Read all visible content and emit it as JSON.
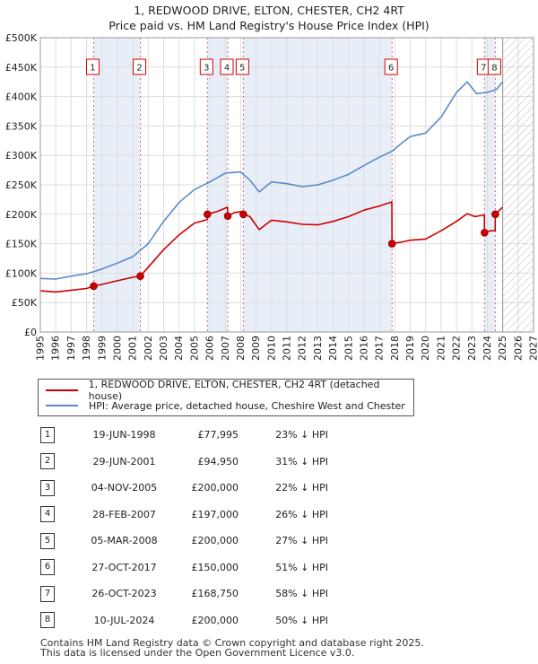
{
  "title_line1": "1, REDWOOD DRIVE, ELTON, CHESTER, CH2 4RT",
  "title_line2": "Price paid vs. HM Land Registry's House Price Index (HPI)",
  "chart_data": {
    "type": "line",
    "ylim": [
      0,
      500000
    ],
    "xlim": [
      1995,
      2027
    ],
    "y_ticks": [
      {
        "value": 0,
        "label": "£0"
      },
      {
        "value": 50000,
        "label": "£50K"
      },
      {
        "value": 100000,
        "label": "£100K"
      },
      {
        "value": 150000,
        "label": "£150K"
      },
      {
        "value": 200000,
        "label": "£200K"
      },
      {
        "value": 250000,
        "label": "£250K"
      },
      {
        "value": 300000,
        "label": "£300K"
      },
      {
        "value": 350000,
        "label": "£350K"
      },
      {
        "value": 400000,
        "label": "£400K"
      },
      {
        "value": 450000,
        "label": "£450K"
      },
      {
        "value": 500000,
        "label": "£500K"
      }
    ],
    "x_ticks": [
      "1995",
      "1996",
      "1997",
      "1998",
      "1999",
      "2000",
      "2001",
      "2002",
      "2003",
      "2004",
      "2005",
      "2006",
      "2007",
      "2008",
      "2009",
      "2010",
      "2011",
      "2012",
      "2013",
      "2014",
      "2015",
      "2016",
      "2017",
      "2018",
      "2019",
      "2020",
      "2021",
      "2022",
      "2023",
      "2024",
      "2025",
      "2026",
      "2027"
    ],
    "future_hatch_from": 2025.0,
    "shaded_bands": [
      [
        1998.46,
        2001.49
      ],
      [
        2005.84,
        2007.16
      ],
      [
        2008.17,
        2017.82
      ],
      [
        2023.82,
        2024.52
      ]
    ],
    "series": [
      {
        "name": "1, REDWOOD DRIVE, ELTON, CHESTER, CH2 4RT (detached house)",
        "color": "#cc0000",
        "points": [
          [
            1995.0,
            70000
          ],
          [
            1996.0,
            68000
          ],
          [
            1997.0,
            71000
          ],
          [
            1998.0,
            74000
          ],
          [
            1998.46,
            77995
          ],
          [
            1999.0,
            81000
          ],
          [
            2000.0,
            87000
          ],
          [
            2001.0,
            93000
          ],
          [
            2001.49,
            94950
          ],
          [
            2002.0,
            110000
          ],
          [
            2003.0,
            140000
          ],
          [
            2004.0,
            165000
          ],
          [
            2005.0,
            185000
          ],
          [
            2005.84,
            191000
          ],
          [
            2005.85,
            200000
          ],
          [
            2006.5,
            205000
          ],
          [
            2007.15,
            212000
          ],
          [
            2007.16,
            197000
          ],
          [
            2007.6,
            203000
          ],
          [
            2008.17,
            205000
          ],
          [
            2008.18,
            200000
          ],
          [
            2008.6,
            196000
          ],
          [
            2009.2,
            174000
          ],
          [
            2010.0,
            190000
          ],
          [
            2011.0,
            187000
          ],
          [
            2012.0,
            183000
          ],
          [
            2013.0,
            182000
          ],
          [
            2014.0,
            188000
          ],
          [
            2015.0,
            196000
          ],
          [
            2016.0,
            207000
          ],
          [
            2017.0,
            214000
          ],
          [
            2017.81,
            221000
          ],
          [
            2017.82,
            150000
          ],
          [
            2018.5,
            153000
          ],
          [
            2019.0,
            156000
          ],
          [
            2020.0,
            158000
          ],
          [
            2021.0,
            172000
          ],
          [
            2022.0,
            188000
          ],
          [
            2022.7,
            201000
          ],
          [
            2023.2,
            196000
          ],
          [
            2023.81,
            199000
          ],
          [
            2023.82,
            168750
          ],
          [
            2024.2,
            172000
          ],
          [
            2024.51,
            172000
          ],
          [
            2024.52,
            200000
          ],
          [
            2025.0,
            212000
          ]
        ]
      },
      {
        "name": "HPI: Average price, detached house, Cheshire West and Chester",
        "color": "#5b8ac8",
        "points": [
          [
            1995.0,
            91000
          ],
          [
            1996.0,
            90000
          ],
          [
            1997.0,
            95000
          ],
          [
            1998.0,
            99000
          ],
          [
            1999.0,
            107000
          ],
          [
            2000.0,
            117000
          ],
          [
            2001.0,
            128000
          ],
          [
            2002.0,
            150000
          ],
          [
            2003.0,
            188000
          ],
          [
            2004.0,
            220000
          ],
          [
            2005.0,
            242000
          ],
          [
            2006.0,
            255000
          ],
          [
            2007.0,
            270000
          ],
          [
            2008.0,
            272000
          ],
          [
            2008.6,
            258000
          ],
          [
            2009.2,
            238000
          ],
          [
            2010.0,
            255000
          ],
          [
            2011.0,
            252000
          ],
          [
            2012.0,
            247000
          ],
          [
            2013.0,
            250000
          ],
          [
            2014.0,
            258000
          ],
          [
            2015.0,
            268000
          ],
          [
            2016.0,
            283000
          ],
          [
            2017.0,
            297000
          ],
          [
            2017.82,
            307000
          ],
          [
            2018.5,
            322000
          ],
          [
            2019.0,
            332000
          ],
          [
            2020.0,
            338000
          ],
          [
            2021.0,
            365000
          ],
          [
            2022.0,
            407000
          ],
          [
            2022.7,
            425000
          ],
          [
            2023.3,
            405000
          ],
          [
            2024.0,
            407000
          ],
          [
            2024.6,
            412000
          ],
          [
            2025.0,
            425000
          ]
        ]
      }
    ],
    "sales": [
      {
        "label": "1",
        "x": 1998.46,
        "value": 77995
      },
      {
        "label": "2",
        "x": 2001.49,
        "value": 94950
      },
      {
        "label": "3",
        "x": 2005.84,
        "value": 200000
      },
      {
        "label": "4",
        "x": 2007.16,
        "value": 197000
      },
      {
        "label": "5",
        "x": 2008.17,
        "value": 200000
      },
      {
        "label": "6",
        "x": 2017.82,
        "value": 150000
      },
      {
        "label": "7",
        "x": 2023.82,
        "value": 168750
      },
      {
        "label": "8",
        "x": 2024.52,
        "value": 200000
      }
    ]
  },
  "legend": {
    "property_label": "1, REDWOOD DRIVE, ELTON, CHESTER, CH2 4RT (detached house)",
    "hpi_label": "HPI: Average price, detached house, Cheshire West and Chester",
    "property_color": "#cc0000",
    "hpi_color": "#5b8ac8"
  },
  "table": [
    {
      "num": "1",
      "date": "19-JUN-1998",
      "price": "£77,995",
      "hpi": "23% ↓ HPI"
    },
    {
      "num": "2",
      "date": "29-JUN-2001",
      "price": "£94,950",
      "hpi": "31% ↓ HPI"
    },
    {
      "num": "3",
      "date": "04-NOV-2005",
      "price": "£200,000",
      "hpi": "22% ↓ HPI"
    },
    {
      "num": "4",
      "date": "28-FEB-2007",
      "price": "£197,000",
      "hpi": "26% ↓ HPI"
    },
    {
      "num": "5",
      "date": "05-MAR-2008",
      "price": "£200,000",
      "hpi": "27% ↓ HPI"
    },
    {
      "num": "6",
      "date": "27-OCT-2017",
      "price": "£150,000",
      "hpi": "51% ↓ HPI"
    },
    {
      "num": "7",
      "date": "26-OCT-2023",
      "price": "£168,750",
      "hpi": "58% ↓ HPI"
    },
    {
      "num": "8",
      "date": "10-JUL-2024",
      "price": "£200,000",
      "hpi": "50% ↓ HPI"
    }
  ],
  "footer_line1": "Contains HM Land Registry data © Crown copyright and database right 2025.",
  "footer_line2": "This data is licensed under the Open Government Licence v3.0."
}
